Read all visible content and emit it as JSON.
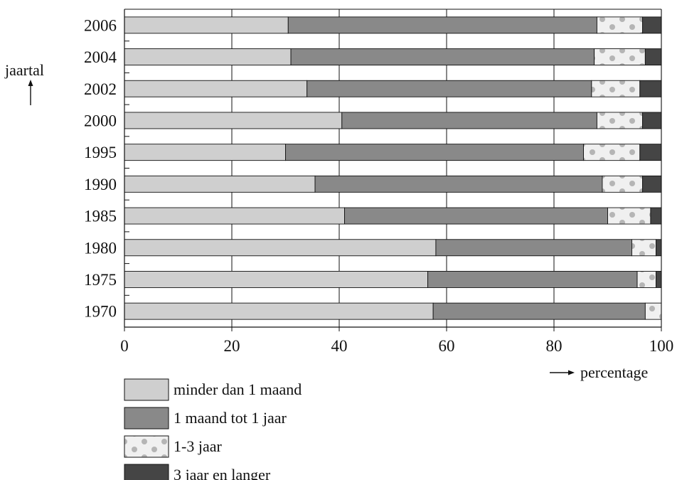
{
  "chart_data": {
    "type": "bar",
    "orientation": "horizontal",
    "stacked": true,
    "title": "",
    "xlabel": "percentage",
    "ylabel": "jaartal",
    "xlim": [
      0,
      100
    ],
    "xticks": [
      0,
      20,
      40,
      60,
      80,
      100
    ],
    "grid": "vertical",
    "legend_position": "bottom",
    "categories": [
      "2006",
      "2004",
      "2002",
      "2000",
      "1995",
      "1990",
      "1985",
      "1980",
      "1975",
      "1970"
    ],
    "series": [
      {
        "name": "minder dan 1 maand",
        "color": "#cfcfcf",
        "pattern": "solid",
        "values": [
          30.5,
          31,
          34,
          40.5,
          30,
          35.5,
          41,
          58,
          56.5,
          57.5
        ]
      },
      {
        "name": "1 maand tot 1 jaar",
        "color": "#898989",
        "pattern": "solid",
        "values": [
          57.5,
          56.5,
          53,
          47.5,
          55.5,
          53.5,
          49,
          36.5,
          39,
          39.5
        ]
      },
      {
        "name": "1-3 jaar",
        "color": "#f0f0f0",
        "pattern": "dots",
        "values": [
          8.5,
          9.5,
          9,
          8.5,
          10.5,
          7.5,
          8,
          4.5,
          3.5,
          3
        ]
      },
      {
        "name": "3 jaar en langer",
        "color": "#454545",
        "pattern": "solid",
        "values": [
          3.5,
          3,
          4,
          3.5,
          4,
          3.5,
          2,
          1,
          1,
          0
        ]
      }
    ]
  }
}
